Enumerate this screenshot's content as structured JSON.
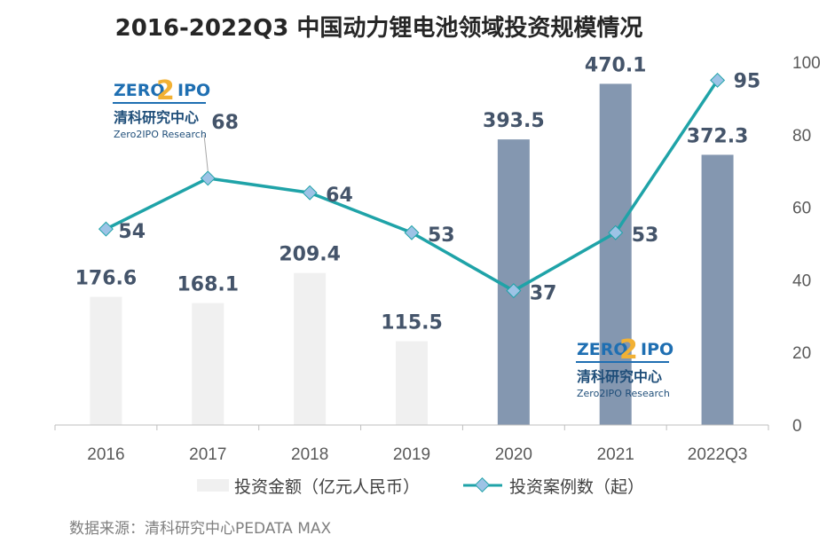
{
  "colors": {
    "bar_light": "#f0f0f0",
    "bar_dark": "#8497b0",
    "line": "#1fa3a8",
    "marker": "#9dc3e6",
    "label": "#44546a",
    "logo_blue": "#1f6fb2",
    "logo_gold": "#f2b134"
  },
  "chart_data": {
    "type": "bar",
    "title": "2016-2022Q3 中国动力锂电池领域投资规模情况",
    "categories": [
      "2016",
      "2017",
      "2018",
      "2019",
      "2020",
      "2021",
      "2022Q3"
    ],
    "series": [
      {
        "name": "投资金额（亿元人民币）",
        "type": "bar",
        "values": [
          176.6,
          168.1,
          209.4,
          115.5,
          393.5,
          470.1,
          372.3
        ],
        "value_labels": [
          "176.6",
          "168.1",
          "209.4",
          "115.5",
          "393.5",
          "470.1",
          "372.3"
        ]
      },
      {
        "name": "投资案例数（起）",
        "type": "line",
        "axis": "right",
        "values": [
          54,
          68,
          64,
          53,
          37,
          53,
          95
        ],
        "value_labels": [
          "54",
          "68",
          "64",
          "53",
          "37",
          "53",
          "95"
        ]
      }
    ],
    "left_ylim": [
      0,
      500
    ],
    "right_ylim": [
      0,
      100
    ],
    "right_yticks": [
      "0",
      "20",
      "40",
      "60",
      "80",
      "100"
    ],
    "grid": false,
    "legend_position": "bottom"
  },
  "legend": {
    "bar_label": "投资金额（亿元人民币）",
    "line_label": "投资案例数（起）"
  },
  "source": "数据来源：清科研究中心PEDATA MAX",
  "logo": {
    "zero": "ZERO",
    "two": "2",
    "ipo": "IPO",
    "cn": "清科研究中心",
    "en": "Zero2IPO Research"
  }
}
